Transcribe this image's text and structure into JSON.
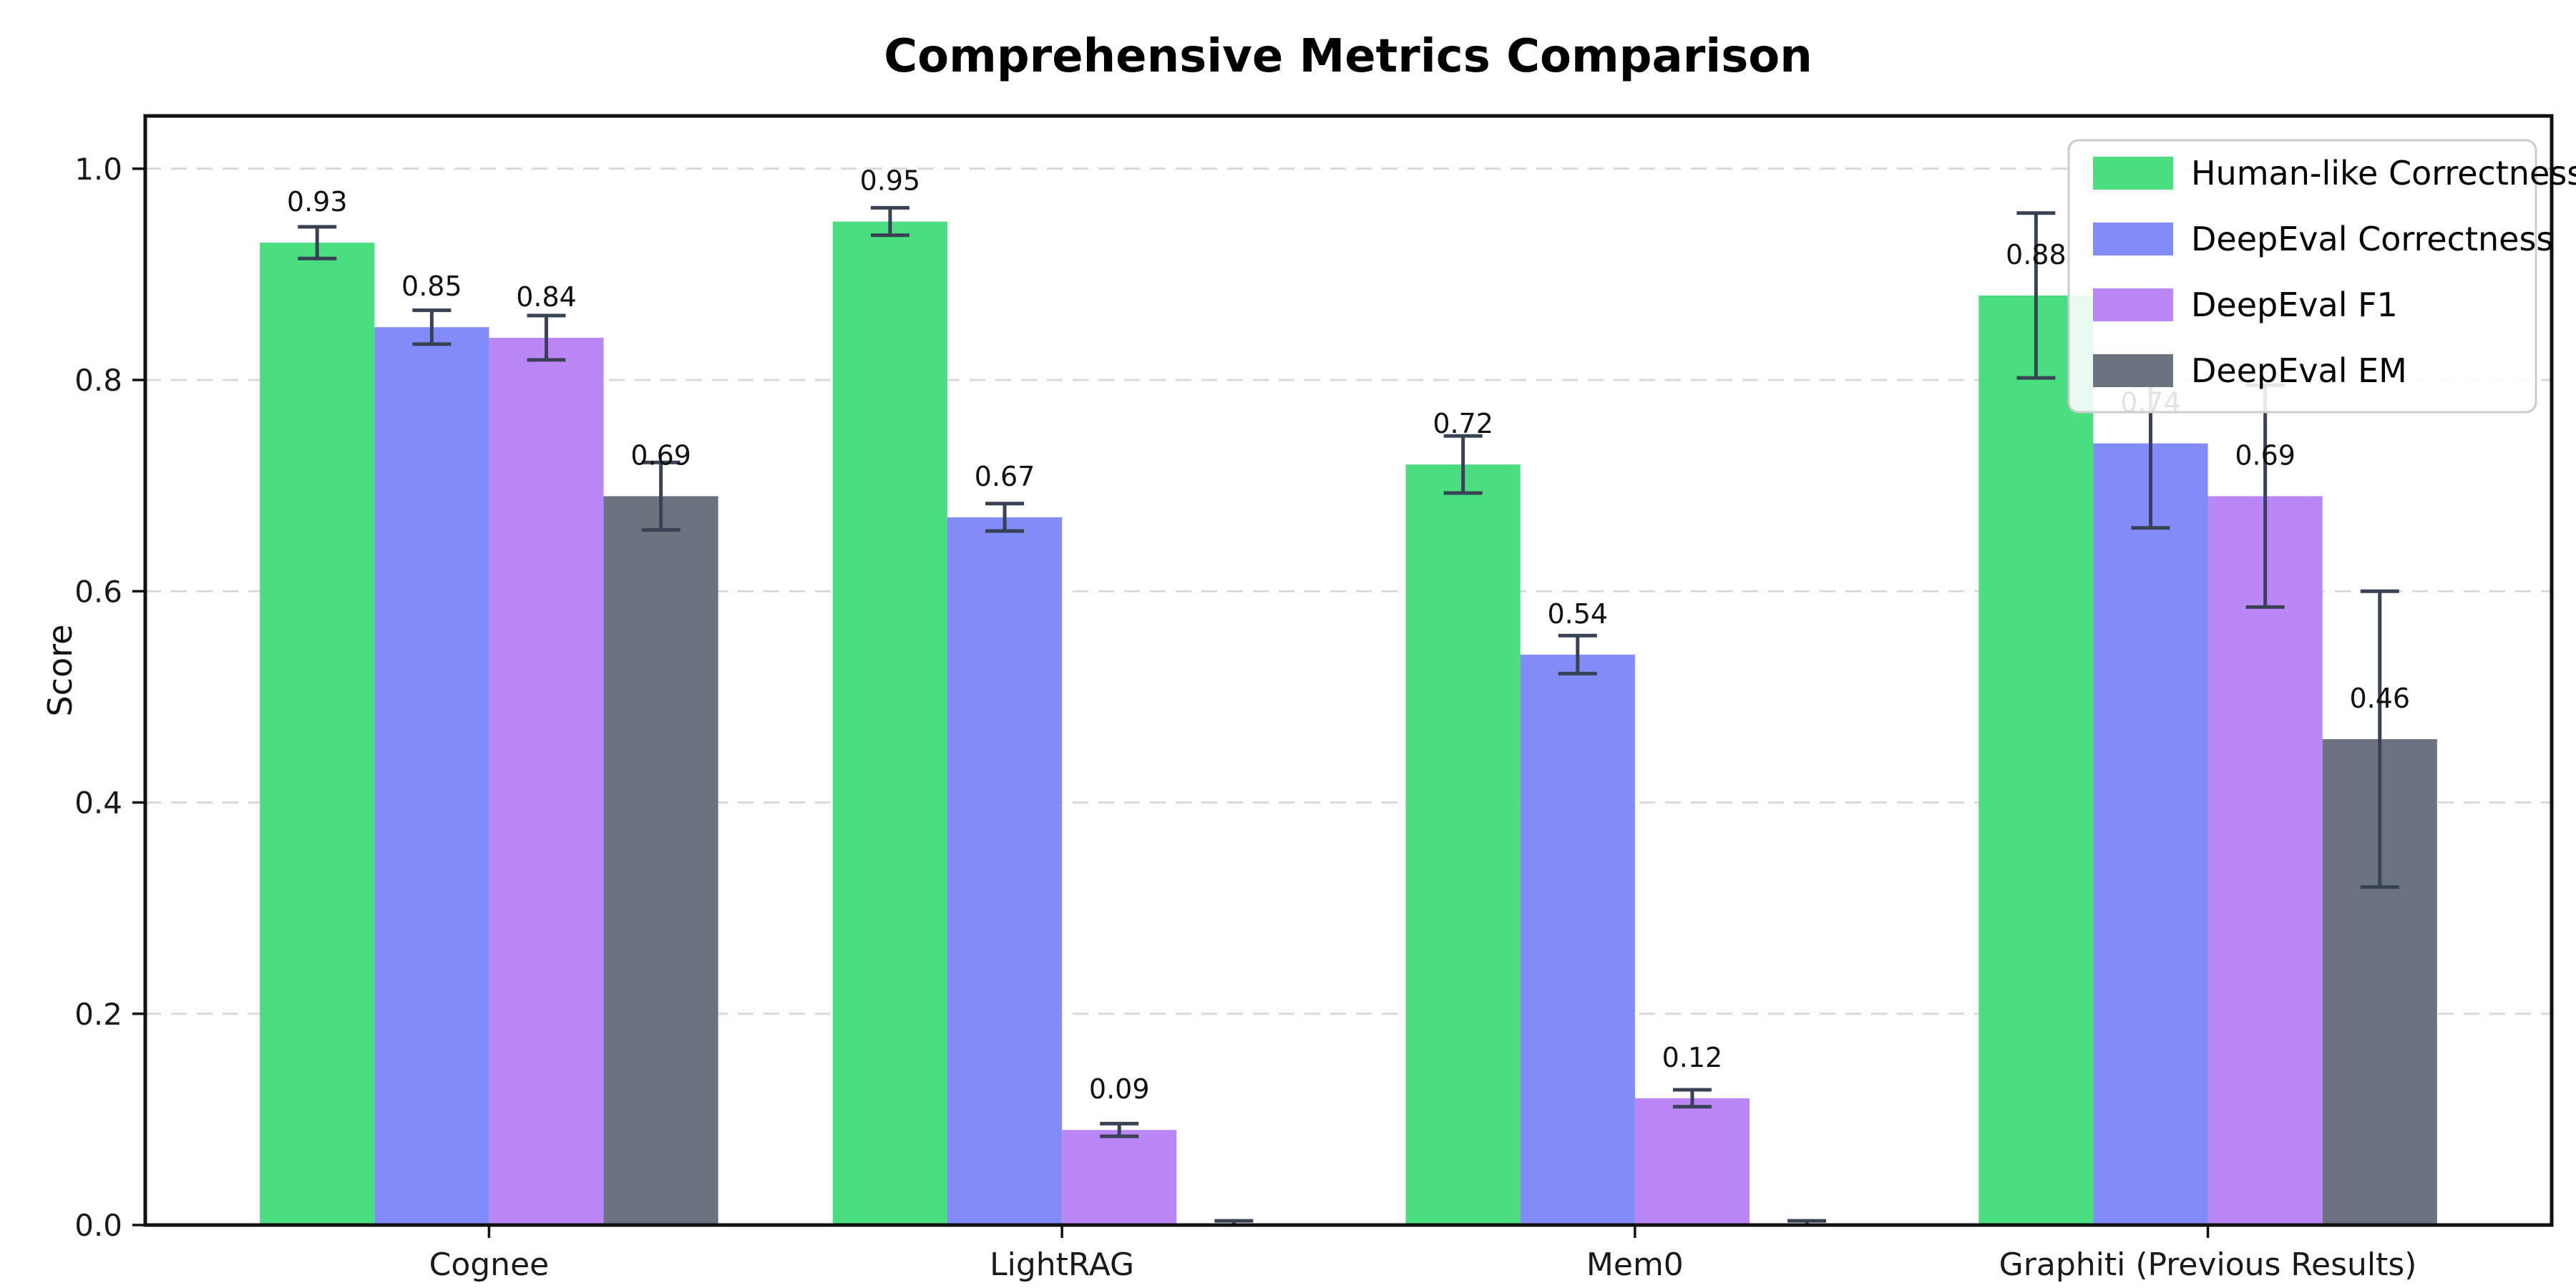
{
  "page": {
    "background_color": "#ffffff"
  },
  "chart_data": {
    "type": "bar",
    "title": "Comprehensive Metrics Comparison",
    "xlabel": "",
    "ylabel": "Score",
    "categories": [
      "Cognee",
      "LightRAG",
      "Mem0",
      "Graphiti (Previous Results)"
    ],
    "series": [
      {
        "name": "Human-like Correctness",
        "color": "#4ade80",
        "values": [
          0.93,
          0.95,
          0.72,
          0.88
        ],
        "errors": [
          0.015,
          0.013,
          0.027,
          0.078
        ]
      },
      {
        "name": "DeepEval Correctness",
        "color": "#818cf8",
        "values": [
          0.85,
          0.67,
          0.54,
          0.74
        ],
        "errors": [
          0.016,
          0.013,
          0.018,
          0.08
        ]
      },
      {
        "name": "DeepEval F1",
        "color": "#bb86f5",
        "values": [
          0.84,
          0.09,
          0.12,
          0.69
        ],
        "errors": [
          0.021,
          0.006,
          0.008,
          0.105
        ]
      },
      {
        "name": "DeepEval EM",
        "color": "#6b7280",
        "values": [
          0.69,
          0.0,
          0.0,
          0.46
        ],
        "errors": [
          0.032,
          0.004,
          0.004,
          0.14
        ]
      }
    ],
    "bar_value_labels": {
      "format": "two_decimals",
      "hide_when_zero": true
    },
    "yticks": [
      0.0,
      0.2,
      0.4,
      0.6,
      0.8,
      1.0
    ],
    "ytick_labels": [
      "0.0",
      "0.2",
      "0.4",
      "0.6",
      "0.8",
      "1.0"
    ],
    "ylim": [
      0,
      1.05
    ],
    "grid": {
      "horizontal": true,
      "style": "dashed",
      "color": "#d9d9d9"
    },
    "legend": {
      "position": "upper right",
      "entries": [
        "Human-like Correctness",
        "DeepEval Correctness",
        "DeepEval F1",
        "DeepEval EM"
      ]
    },
    "error_bar_color": "#384254",
    "spine_color": "#111111"
  }
}
